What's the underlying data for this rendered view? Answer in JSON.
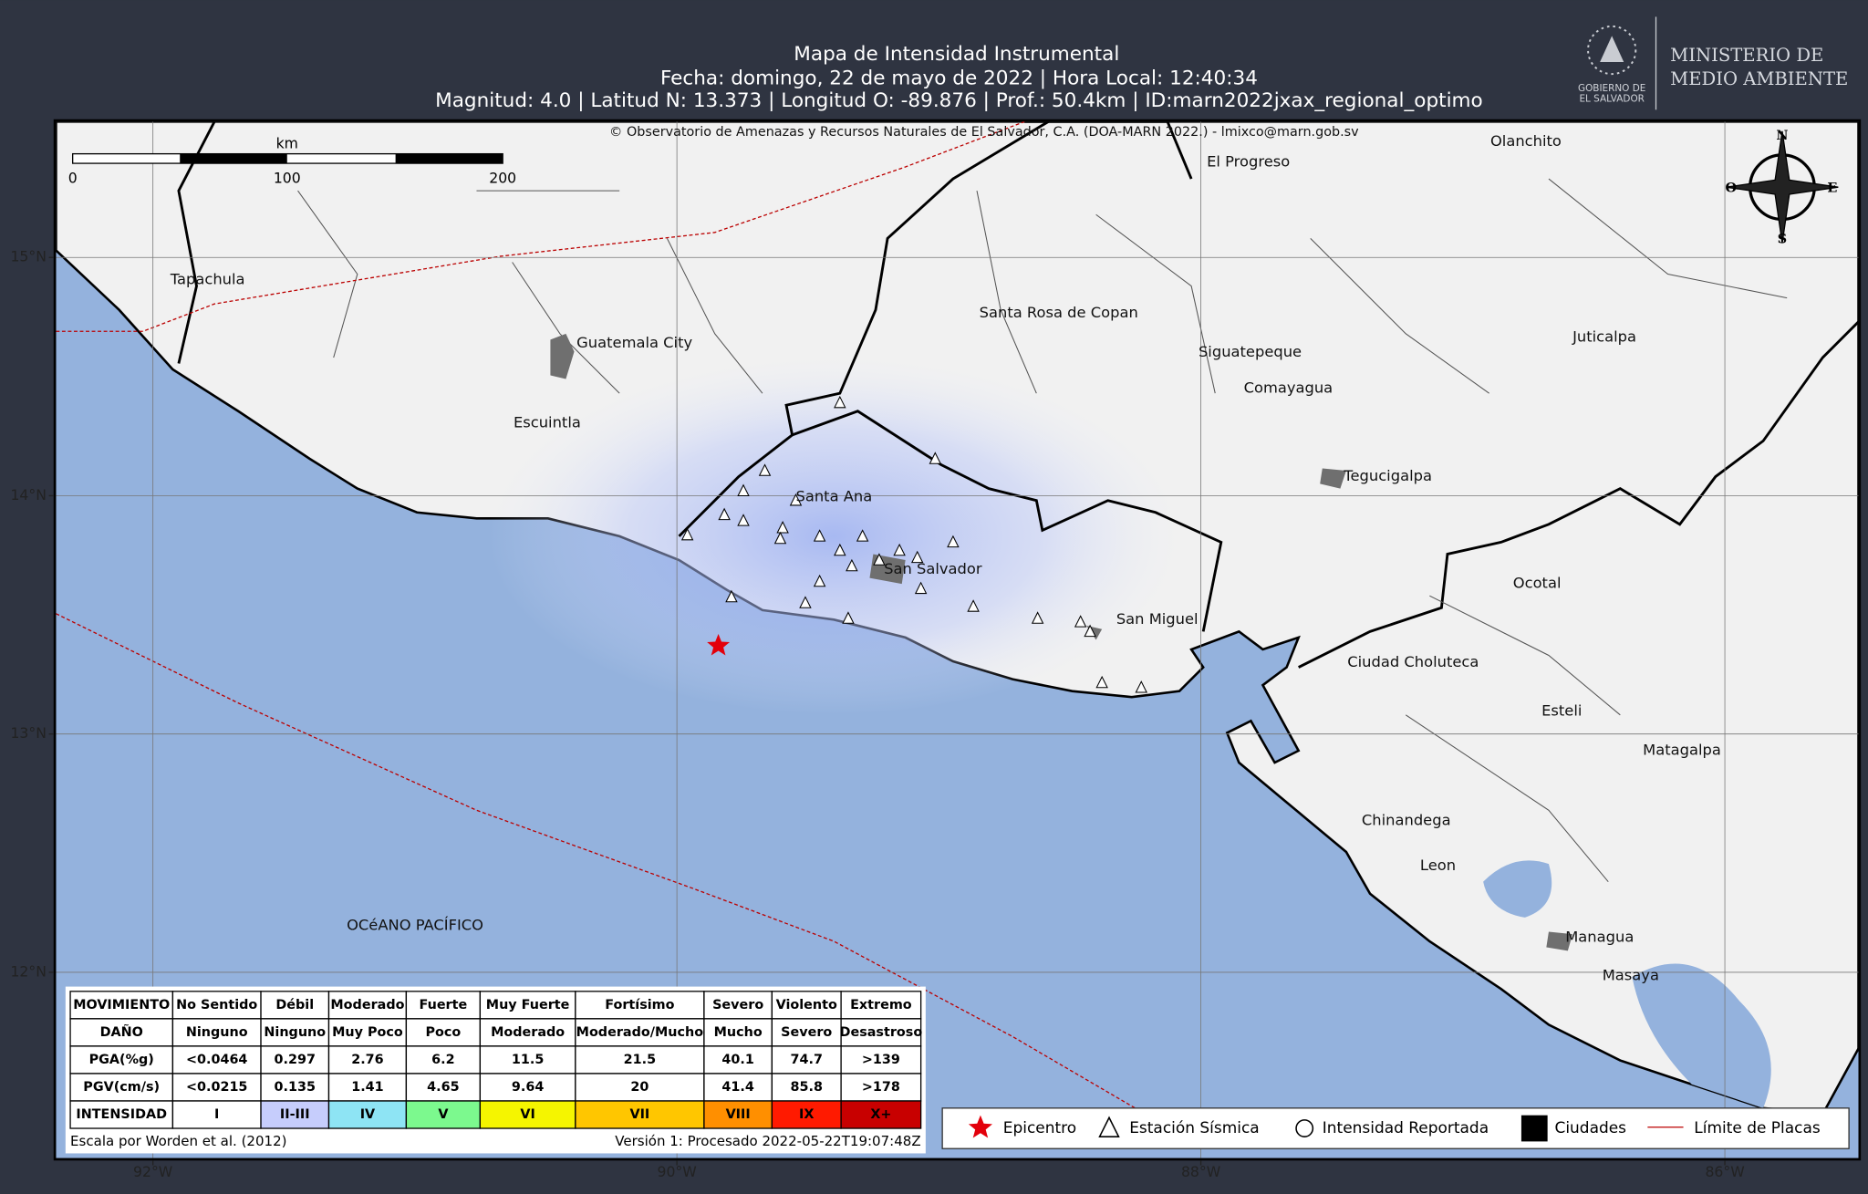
{
  "header": {
    "title": "Mapa de Intensidad Instrumental",
    "line2": "Fecha: domingo, 22 de mayo de 2022 | Hora Local: 12:40:34",
    "line3": "Magnitud: 4.0 | Latitud N: 13.373 | Longitud O: -89.876 | Prof.: 50.4km | ID:marn2022jxax_regional_optimo"
  },
  "logo": {
    "gov": [
      "GOBIERNO DE",
      "EL SALVADOR"
    ],
    "ministry": [
      "MINISTERIO DE",
      "MEDIO AMBIENTE"
    ]
  },
  "map": {
    "copyright": "© Observatorio de Amenazas y Recursos Naturales de El Salvador, C.A. (DOA-MARN 2022.) - lmixco@marn.gob.sv",
    "scale_unit": "km",
    "scale_labels": [
      "0",
      "100",
      "200"
    ],
    "compass": [
      "N",
      "O",
      "E",
      "S"
    ],
    "xlim": [
      -92.37,
      -85.49
    ],
    "ylim": [
      11.22,
      15.57
    ],
    "xticks": [
      {
        "value": -92,
        "label": "92°W"
      },
      {
        "value": -90,
        "label": "90°W"
      },
      {
        "value": -88,
        "label": "88°W"
      },
      {
        "value": -86,
        "label": "86°W"
      }
    ],
    "yticks": [
      {
        "value": 15,
        "label": "15°N"
      },
      {
        "value": 14,
        "label": "14°N"
      },
      {
        "value": 13,
        "label": "13°N"
      },
      {
        "value": 12,
        "label": "12°N"
      }
    ],
    "places": [
      "Tapachula",
      "Guatemala City",
      "Escuintla",
      "Santa Ana",
      "San Salvador",
      "San Miguel",
      "Santa Rosa de Copan",
      "El Progreso",
      "Olanchito",
      "Siguatepeque",
      "Comayagua",
      "Tegucigalpa",
      "Juticalpa",
      "Ocotal",
      "Ciudad Choluteca",
      "Esteli",
      "Matagalpa",
      "Chinandega",
      "Leon",
      "Managua",
      "Masaya"
    ],
    "ocean_label": "OCéANO PACÍFICO"
  },
  "table": {
    "rows": [
      [
        "MOVIMIENTO",
        "No Sentido",
        "Débil",
        "Moderado",
        "Fuerte",
        "Muy Fuerte",
        "Fortísimo",
        "Severo",
        "Violento",
        "Extremo"
      ],
      [
        "DAÑO",
        "Ninguno",
        "Ninguno",
        "Muy Poco",
        "Poco",
        "Moderado",
        "Moderado/Mucho",
        "Mucho",
        "Severo",
        "Desastroso"
      ],
      [
        "PGA(%g)",
        "<0.0464",
        "0.297",
        "2.76",
        "6.2",
        "11.5",
        "21.5",
        "40.1",
        "74.7",
        ">139"
      ],
      [
        "PGV(cm/s)",
        "<0.0215",
        "0.135",
        "1.41",
        "4.65",
        "9.64",
        "20",
        "41.4",
        "85.8",
        ">178"
      ],
      [
        "INTENSIDAD",
        "I",
        "II-III",
        "IV",
        "V",
        "VI",
        "VII",
        "VIII",
        "IX",
        "X+"
      ]
    ]
  },
  "footer": {
    "left": "Escala por Worden et al. (2012)",
    "right": "Versión 1: Procesado 2022-05-22T19:07:48Z"
  },
  "legend": [
    "Epicentro",
    "Estación Sísmica",
    "Intensidad Reportada",
    "Ciudades",
    "Límite de Placas"
  ]
}
